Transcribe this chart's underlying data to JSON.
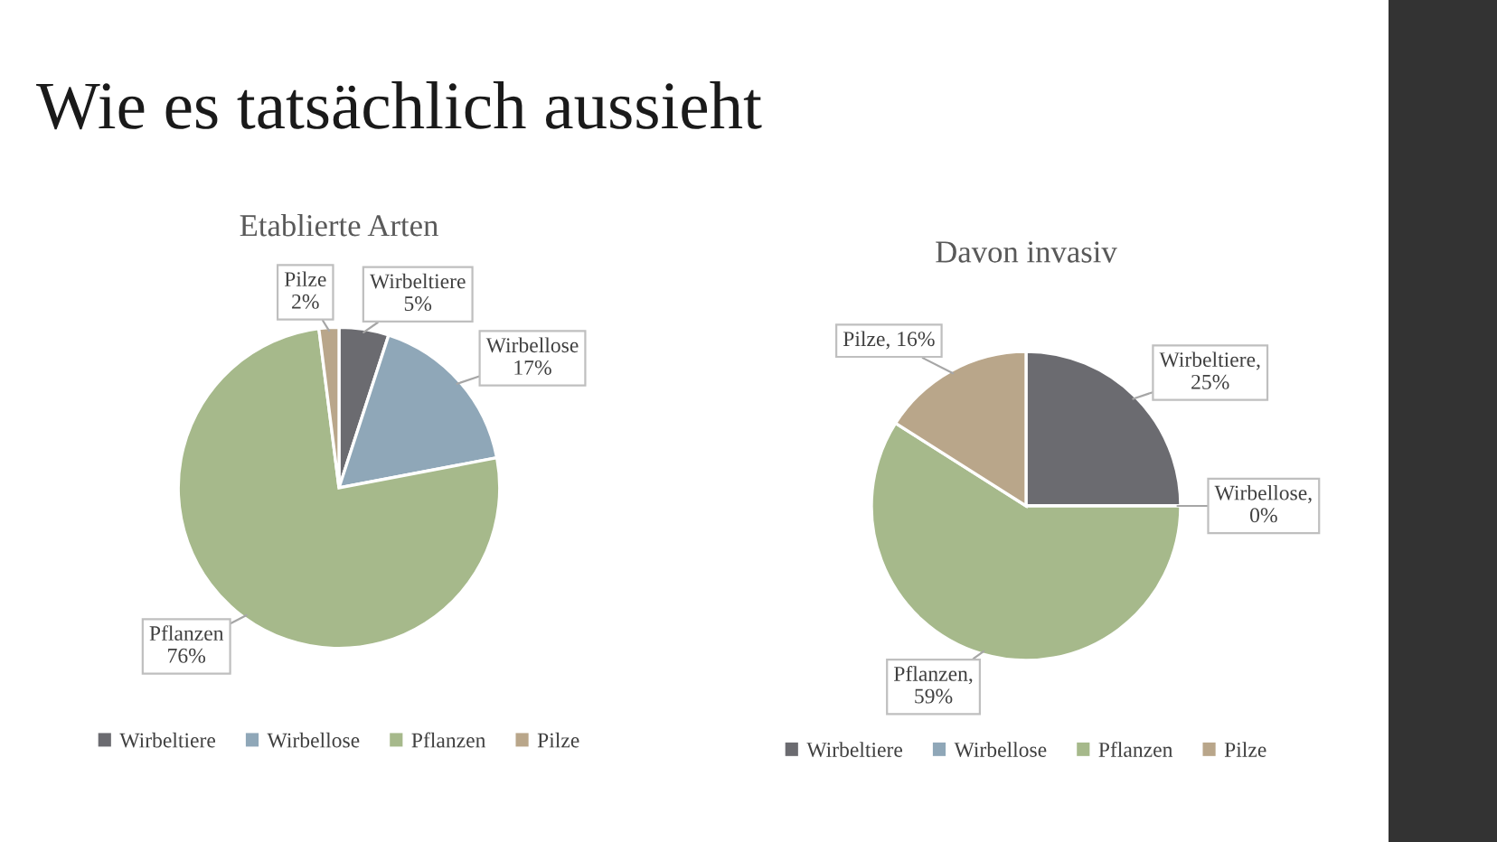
{
  "chart_data": [
    {
      "type": "pie",
      "title": "Etablierte Arten",
      "annotations": [
        "Wie es tatsächlich aussieht"
      ],
      "categories": [
        "Wirbeltiere",
        "Wirbellose",
        "Pflanzen",
        "Pilze"
      ],
      "values": [
        5,
        17,
        76,
        2
      ],
      "colors": [
        "#6b6b70",
        "#8fa7b8",
        "#a6b98b",
        "#b9a68a"
      ],
      "value_labels": [
        "Wirbeltiere\n5%",
        "Wirbellose\n17%",
        "Pflanzen\n76%",
        "Pilze\n2%"
      ],
      "legend": "bottom"
    },
    {
      "type": "pie",
      "title": "Davon invasiv",
      "categories": [
        "Wirbeltiere",
        "Wirbellose",
        "Pflanzen",
        "Pilze"
      ],
      "values": [
        25,
        0,
        59,
        16
      ],
      "colors": [
        "#6b6b70",
        "#8fa7b8",
        "#a6b98b",
        "#b9a68a"
      ],
      "value_labels": [
        "Wirbeltiere,\n25%",
        "Wirbellose,\n0%",
        "Pflanzen,\n59%",
        "Pilze, 16%"
      ],
      "legend": "bottom"
    }
  ]
}
